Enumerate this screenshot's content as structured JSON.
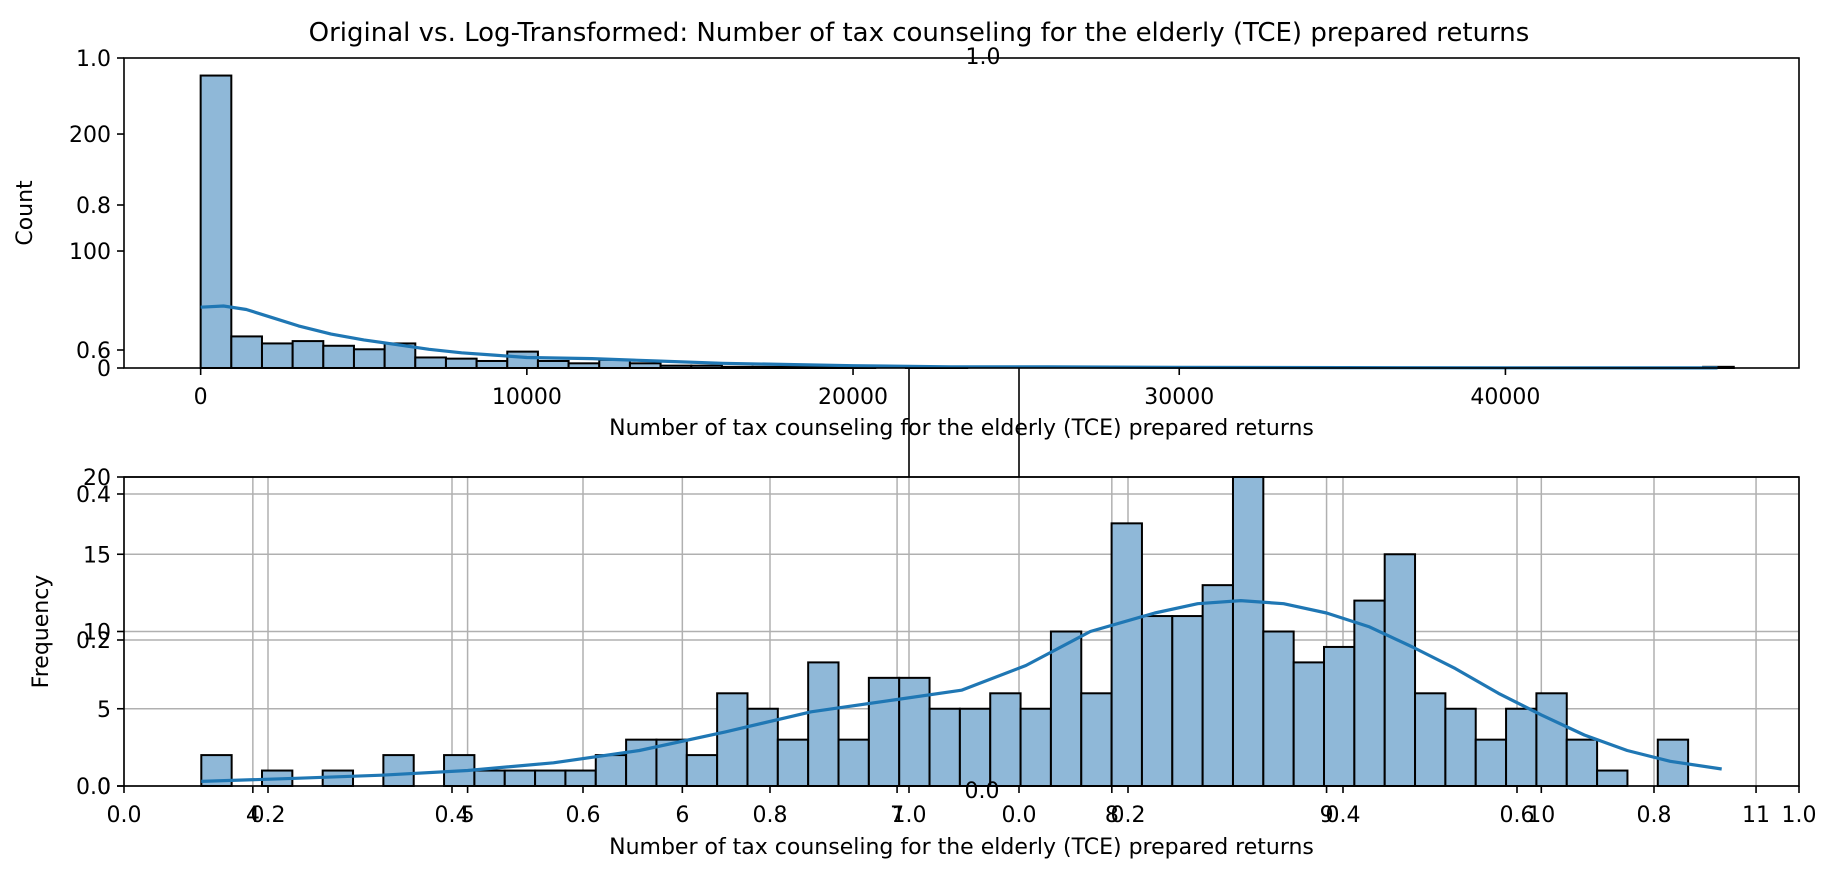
{
  "title": "Original vs. Log-Transformed: Number of tax counseling for the elderly (TCE) prepared returns",
  "colors": {
    "bar_fill": "#8fb8d8",
    "bar_edge": "#000000",
    "kde": "#1f77b4",
    "grid": "#b0b0b0"
  },
  "chart_data": [
    {
      "type": "bar",
      "subtype": "histogram",
      "xlabel": "Number of tax counseling for the elderly (TCE) prepared returns",
      "ylabel": "Count",
      "xlim": [
        -2350,
        49000
      ],
      "ylim": [
        0,
        265
      ],
      "xticks": [
        0,
        10000,
        20000,
        30000,
        40000
      ],
      "xtick_labels": [
        "0",
        "10000",
        "20000",
        "30000",
        "40000"
      ],
      "yticks": [
        0,
        100,
        200
      ],
      "ytick_labels": [
        "0",
        "100",
        "200"
      ],
      "overlay_ytick_labels": [
        "0.6",
        "0.8",
        "1.0"
      ],
      "top_tick_label": "1.0",
      "grid": false,
      "bin_start": 0,
      "bin_width": 940,
      "counts": [
        250,
        27,
        21,
        23,
        19,
        16,
        21,
        9,
        8,
        6,
        14,
        6,
        4,
        7,
        4,
        2,
        2,
        1,
        1,
        1,
        1,
        1,
        0,
        1,
        1,
        0,
        0,
        0,
        0,
        0,
        0,
        0,
        0,
        0,
        0,
        0,
        0,
        0,
        0,
        0,
        0,
        0,
        0,
        0,
        0,
        0,
        0,
        0,
        0,
        1
      ],
      "kde": {
        "x": [
          0,
          700,
          1400,
          2200,
          3000,
          4000,
          5000,
          6000,
          7000,
          8000,
          9000,
          10000,
          12000,
          14000,
          16000,
          18000,
          20000,
          23000,
          26000,
          30000,
          35000,
          40000,
          45000,
          46500
        ],
        "y": [
          52,
          53,
          50,
          43,
          36,
          29,
          24,
          20,
          16,
          13,
          11,
          9,
          8,
          6,
          4,
          3,
          2,
          1,
          1,
          0.5,
          0.3,
          0.2,
          0.1,
          0.1
        ]
      }
    },
    {
      "type": "bar",
      "subtype": "histogram",
      "xlabel": "Number of tax counseling for the elderly (TCE) prepared returns",
      "ylabel": "Frequency",
      "xlim": [
        3.4,
        11.2
      ],
      "ylim": [
        0,
        20
      ],
      "xticks": [
        4,
        5,
        6,
        7,
        8,
        9,
        10,
        11
      ],
      "xtick_labels": [
        "4",
        "5",
        "6",
        "7",
        "8",
        "9",
        "10",
        "11"
      ],
      "yticks": [
        0,
        5,
        10,
        15,
        20
      ],
      "ytick_labels": [
        "0",
        "5",
        "10",
        "15",
        "20"
      ],
      "overlay_xtick_labels": [
        "0.0",
        "0.2",
        "0.4",
        "0.6",
        "0.8",
        "1.0",
        "0.0",
        "0.2",
        "0.4",
        "0.6",
        "0.8",
        "1.0"
      ],
      "overlay_ytick_labels": [
        "0.0",
        "0.2",
        "0.4"
      ],
      "mid_label": "0.0",
      "grid": true,
      "bin_start": 3.76,
      "bin_width": 0.1413,
      "counts": [
        2,
        0,
        1,
        0,
        1,
        0,
        2,
        0,
        2,
        1,
        1,
        1,
        1,
        2,
        3,
        3,
        2,
        6,
        5,
        3,
        8,
        3,
        7,
        7,
        5,
        5,
        6,
        5,
        10,
        6,
        17,
        11,
        11,
        13,
        20,
        10,
        8,
        9,
        12,
        15,
        6,
        5,
        3,
        5,
        6,
        3,
        1,
        0,
        3
      ],
      "kde": {
        "x": [
          3.76,
          4.2,
          4.6,
          5.0,
          5.4,
          5.8,
          6.2,
          6.6,
          7.0,
          7.3,
          7.6,
          7.9,
          8.2,
          8.4,
          8.6,
          8.8,
          9.0,
          9.2,
          9.4,
          9.6,
          9.8,
          10.0,
          10.2,
          10.4,
          10.6,
          10.84
        ],
        "y": [
          0.3,
          0.5,
          0.7,
          1.0,
          1.5,
          2.3,
          3.5,
          4.8,
          5.6,
          6.2,
          7.8,
          10.0,
          11.2,
          11.8,
          12.0,
          11.8,
          11.2,
          10.3,
          9.0,
          7.6,
          6.0,
          4.6,
          3.3,
          2.3,
          1.6,
          1.1
        ]
      }
    }
  ]
}
